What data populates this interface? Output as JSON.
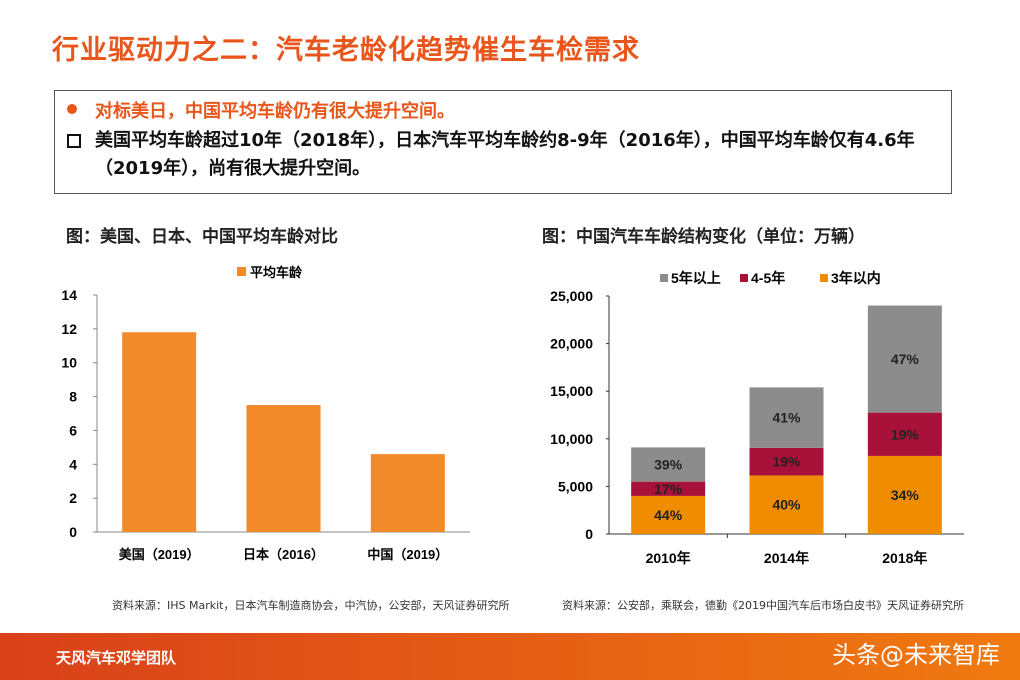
{
  "title": "行业驱动力之二：汽车老龄化趋势催生车检需求",
  "bullets": {
    "point1": "对标美日，中国平均车龄仍有很大提升空间。",
    "point2": "美国平均车龄超过10年（2018年），日本汽车平均车龄约8-9年（2016年），中国平均车龄仅有4.6年（2019年），尚有很大提升空间。"
  },
  "left_caption": "图：美国、日本、中国平均车龄对比",
  "right_caption": "图：中国汽车车龄结构变化（单位：万辆）",
  "left_source": "资料来源：IHS Markit，日本汽车制造商协会，中汽协，公安部，天风证券研究所",
  "right_source": "资料来源：公安部，乘联会，德勤《2019中国汽车后市场白皮书》天风证券研究所",
  "footer": {
    "team": "天风汽车邓学团队",
    "watermark": "头条@未来智库"
  },
  "chart_data": [
    {
      "type": "bar",
      "categories": [
        "美国（2019）",
        "日本（2016）",
        "中国（2019）"
      ],
      "series": [
        {
          "name": "平均车龄",
          "values": [
            11.8,
            7.5,
            4.6
          ],
          "color": "#f28a2a"
        }
      ],
      "ylim": [
        0,
        14
      ],
      "yticks": [
        0,
        2,
        4,
        6,
        8,
        10,
        12,
        14
      ],
      "legend": "top"
    },
    {
      "type": "bar",
      "stacked": true,
      "categories": [
        "2010年",
        "2014年",
        "2018年"
      ],
      "series": [
        {
          "name": "3年以内",
          "values": [
            4000,
            6150,
            8200
          ],
          "labels": [
            "44%",
            "40%",
            "34%"
          ],
          "color": "#f08c00"
        },
        {
          "name": "4-5年",
          "values": [
            1500,
            2900,
            4550
          ],
          "labels": [
            "17%",
            "19%",
            "19%"
          ],
          "color": "#a8123a"
        },
        {
          "name": "5年以上",
          "values": [
            3600,
            6350,
            11250
          ],
          "labels": [
            "39%",
            "41%",
            "47%"
          ],
          "color": "#8c8c8c"
        }
      ],
      "ylim": [
        0,
        25000
      ],
      "yticks": [
        "0",
        "5,000",
        "10,000",
        "15,000",
        "20,000",
        "25,000"
      ],
      "legend": "top"
    }
  ]
}
